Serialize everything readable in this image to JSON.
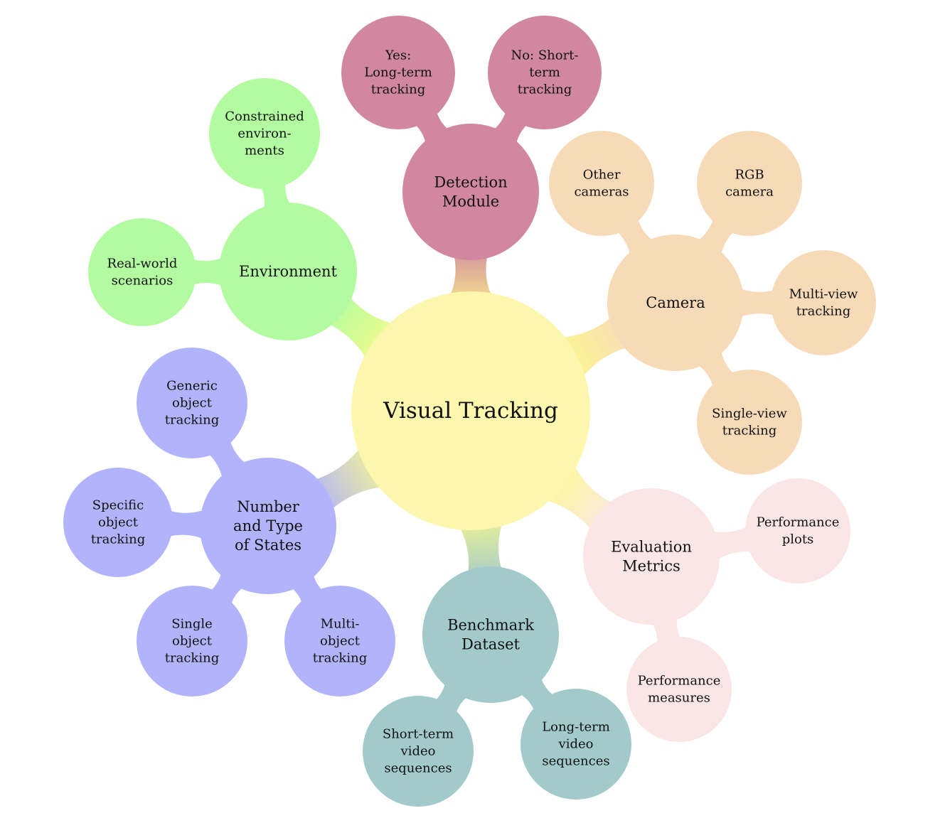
{
  "colors": {
    "center": "#fdf6ad",
    "environment": "#b2fba0",
    "detection": "#d0879f",
    "camera": "#f7dbb8",
    "states": "#b1b4fa",
    "benchmark": "#a2cacb",
    "evaluation": "#fae6e4",
    "connector_glow": "#fdfd88"
  },
  "center": {
    "label": "Visual Tracking"
  },
  "branches": [
    {
      "id": "environment",
      "label": [
        "Environment"
      ],
      "children": [
        {
          "label": [
            "Constrained",
            "environ-",
            "ments"
          ]
        },
        {
          "label": [
            "Real-world",
            "scenarios"
          ]
        }
      ]
    },
    {
      "id": "detection",
      "label": [
        "Detection",
        "Module"
      ],
      "children": [
        {
          "label": [
            "Yes:",
            "Long-term",
            "tracking"
          ]
        },
        {
          "label": [
            "No:  Short-",
            "term",
            "tracking"
          ]
        }
      ]
    },
    {
      "id": "camera",
      "label": [
        "Camera"
      ],
      "children": [
        {
          "label": [
            "Other",
            "cameras"
          ]
        },
        {
          "label": [
            "RGB",
            "camera"
          ]
        },
        {
          "label": [
            "Multi-view",
            "tracking"
          ]
        },
        {
          "label": [
            "Single-view",
            "tracking"
          ]
        }
      ]
    },
    {
      "id": "states",
      "label": [
        "Number",
        "and Type",
        "of States"
      ],
      "children": [
        {
          "label": [
            "Generic",
            "object",
            "tracking"
          ]
        },
        {
          "label": [
            "Specific",
            "object",
            "tracking"
          ]
        },
        {
          "label": [
            "Single",
            "object",
            "tracking"
          ]
        },
        {
          "label": [
            "Multi-",
            "object",
            "tracking"
          ]
        }
      ]
    },
    {
      "id": "benchmark",
      "label": [
        "Benchmark",
        "Dataset"
      ],
      "children": [
        {
          "label": [
            "Short-term",
            "video",
            "sequences"
          ]
        },
        {
          "label": [
            "Long-term",
            "video",
            "sequences"
          ]
        }
      ]
    },
    {
      "id": "evaluation",
      "label": [
        "Evaluation",
        "Metrics"
      ],
      "children": [
        {
          "label": [
            "Performance",
            "plots"
          ]
        },
        {
          "label": [
            "Performance",
            "measures"
          ]
        }
      ]
    }
  ]
}
